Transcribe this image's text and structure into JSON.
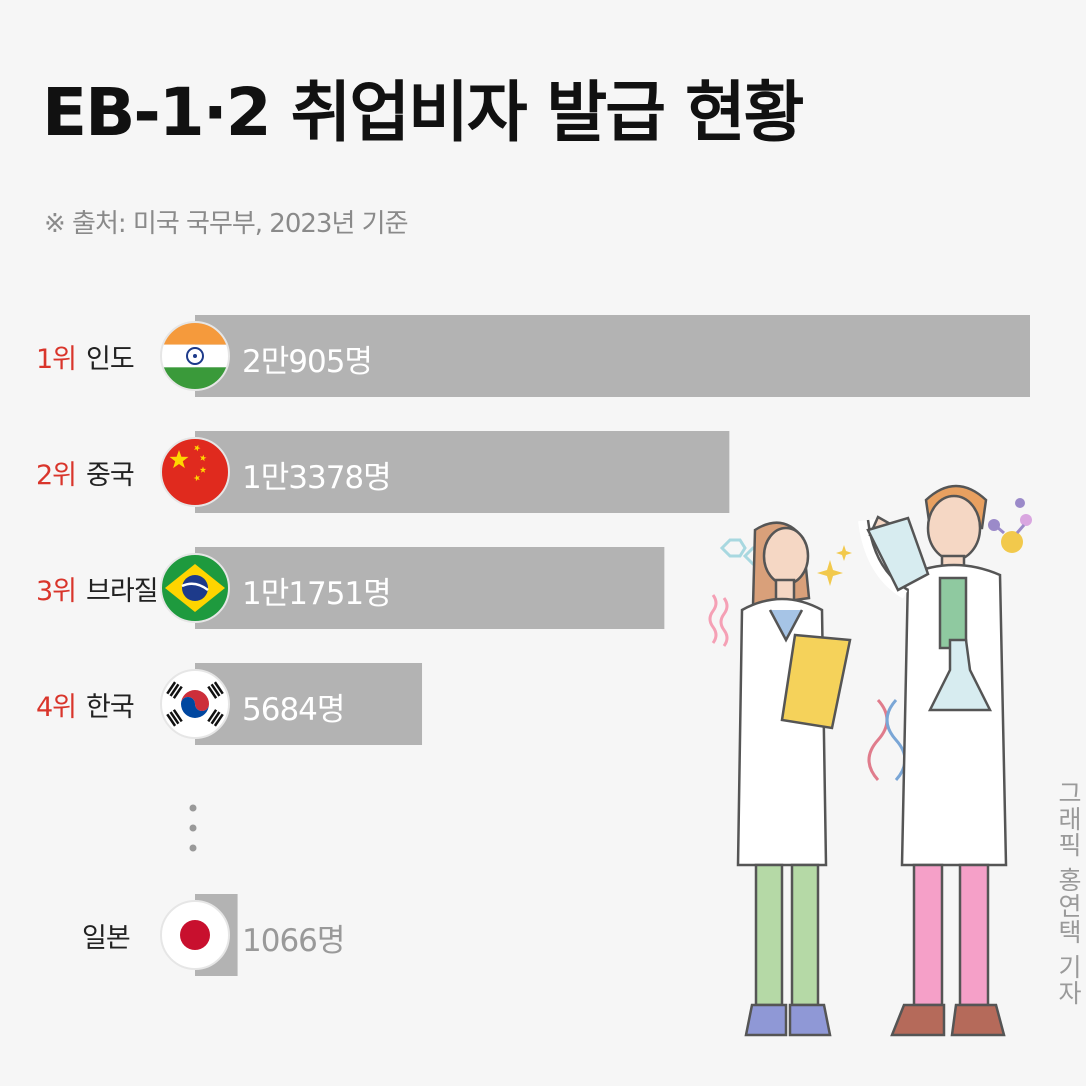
{
  "title": "EB-1·2 취업비자 발급 현황",
  "subtitle": "※ 출처: 미국 국무부, 2023년 기준",
  "credit": "그래픽 홍연택 기자",
  "colors": {
    "bar": "#b3b3b3",
    "rank": "#d9352b"
  },
  "chart_data": {
    "type": "bar",
    "orientation": "horizontal",
    "title": "EB-1·2 취업비자 발급 현황",
    "categories": [
      "인도",
      "중국",
      "브라질",
      "한국",
      "일본"
    ],
    "ranks": [
      "1위",
      "2위",
      "3위",
      "4위",
      ""
    ],
    "values": [
      20905,
      13378,
      11751,
      5684,
      1066
    ],
    "value_labels": [
      "2만905명",
      "1만3378명",
      "1만1751명",
      "5684명",
      "1066명"
    ],
    "flags": [
      "india-flag-icon",
      "china-flag-icon",
      "brazil-flag-icon",
      "korea-flag-icon",
      "japan-flag-icon"
    ],
    "grid": false,
    "legend": "none"
  }
}
